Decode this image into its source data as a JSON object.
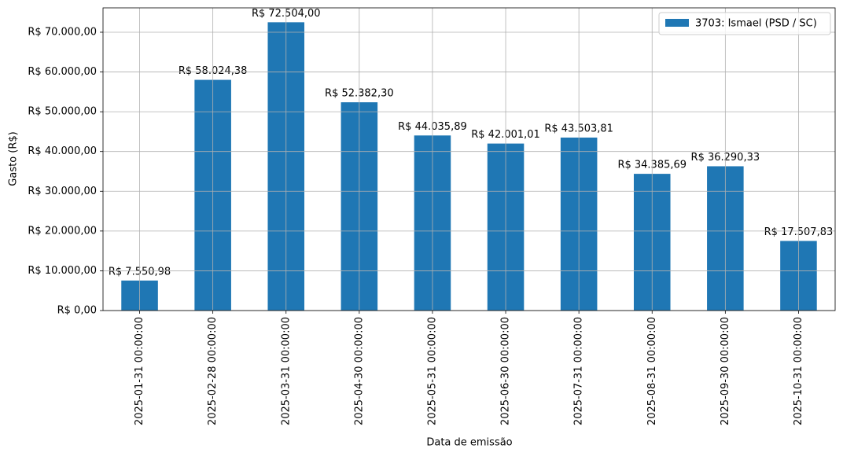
{
  "chart_data": {
    "type": "bar",
    "xlabel": "Data de emissão",
    "ylabel": "Gasto (R$)",
    "categories": [
      "2025-01-31 00:00:00",
      "2025-02-28 00:00:00",
      "2025-03-31 00:00:00",
      "2025-04-30 00:00:00",
      "2025-05-31 00:00:00",
      "2025-06-30 00:00:00",
      "2025-07-31 00:00:00",
      "2025-08-31 00:00:00",
      "2025-09-30 00:00:00",
      "2025-10-31 00:00:00"
    ],
    "series": [
      {
        "name": "3703: Ismael (PSD / SC)",
        "color": "#1f77b4",
        "values": [
          7550.98,
          58024.38,
          72504.0,
          52382.3,
          44035.89,
          42001.01,
          43503.81,
          34385.69,
          36290.33,
          17507.83
        ],
        "value_labels": [
          "R$ 7.550,98",
          "R$ 58.024,38",
          "R$ 72.504,00",
          "R$ 52.382,30",
          "R$ 44.035,89",
          "R$ 42.001,01",
          "R$ 43.503,81",
          "R$ 34.385,69",
          "R$ 36.290,33",
          "R$ 17.507,83"
        ]
      }
    ],
    "ylim": [
      0,
      76129
    ],
    "yticks": [
      {
        "value": 0,
        "label": "R$ 0,00"
      },
      {
        "value": 10000,
        "label": "R$ 10.000,00"
      },
      {
        "value": 20000,
        "label": "R$ 20.000,00"
      },
      {
        "value": 30000,
        "label": "R$ 30.000,00"
      },
      {
        "value": 40000,
        "label": "R$ 40.000,00"
      },
      {
        "value": 50000,
        "label": "R$ 50.000,00"
      },
      {
        "value": 60000,
        "label": "R$ 60.000,00"
      },
      {
        "value": 70000,
        "label": "R$ 70.000,00"
      }
    ],
    "grid": true,
    "legend": "upper right"
  }
}
